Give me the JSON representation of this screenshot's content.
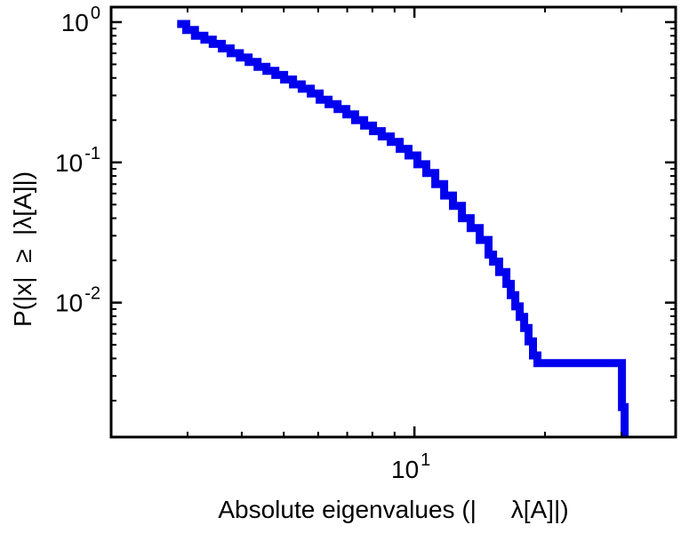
{
  "figure": {
    "background": "#ffffff"
  },
  "chart_data": {
    "type": "line",
    "subtype": "empirical-ccdf-step",
    "title": "",
    "xlabel": "Absolute eigenvalues (|     λ[A]|)",
    "ylabel": "P(|x|  ≥  |λ[A]|)",
    "xscale": "log",
    "yscale": "log",
    "xlim": [
      2,
      40
    ],
    "ylim": [
      0.0011,
      1.28
    ],
    "grid": false,
    "legend": "none",
    "line_color": "#0000ee",
    "line_width": 9,
    "axis_color": "#000000",
    "xticks": [
      {
        "value": 10,
        "base": "10",
        "exponent": "1"
      }
    ],
    "yticks": [
      {
        "value": 1,
        "base": "10",
        "exponent": "0"
      },
      {
        "value": 0.1,
        "base": "10",
        "exponent": "-1"
      },
      {
        "value": 0.01,
        "base": "10",
        "exponent": "-2"
      }
    ],
    "series": [
      {
        "name": "ccdf",
        "x": [
          2.84,
          2.98,
          3.12,
          3.28,
          3.43,
          3.6,
          3.77,
          3.96,
          4.15,
          4.35,
          4.56,
          4.78,
          5.01,
          5.25,
          5.5,
          5.77,
          6.05,
          6.34,
          6.65,
          6.97,
          7.3,
          7.66,
          8.03,
          8.41,
          8.82,
          9.25,
          9.69,
          10.16,
          10.65,
          11.17,
          11.71,
          12.27,
          12.87,
          13.48,
          14.14,
          14.82,
          15.18,
          15.68,
          16.29,
          16.68,
          17.08,
          17.49,
          17.9,
          18.32,
          18.76,
          19.21,
          29.38,
          30.08,
          30.51
        ],
        "y": [
          0.97,
          0.88,
          0.8,
          0.75,
          0.7,
          0.65,
          0.6,
          0.56,
          0.52,
          0.48,
          0.45,
          0.42,
          0.39,
          0.36,
          0.335,
          0.31,
          0.28,
          0.26,
          0.24,
          0.22,
          0.2,
          0.183,
          0.167,
          0.153,
          0.14,
          0.125,
          0.112,
          0.097,
          0.084,
          0.07,
          0.058,
          0.049,
          0.04,
          0.034,
          0.028,
          0.022,
          0.0196,
          0.0165,
          0.0136,
          0.0113,
          0.0094,
          0.0079,
          0.0066,
          0.0053,
          0.0042,
          0.0037,
          0.0037,
          0.0018,
          0.0011
        ]
      }
    ]
  }
}
